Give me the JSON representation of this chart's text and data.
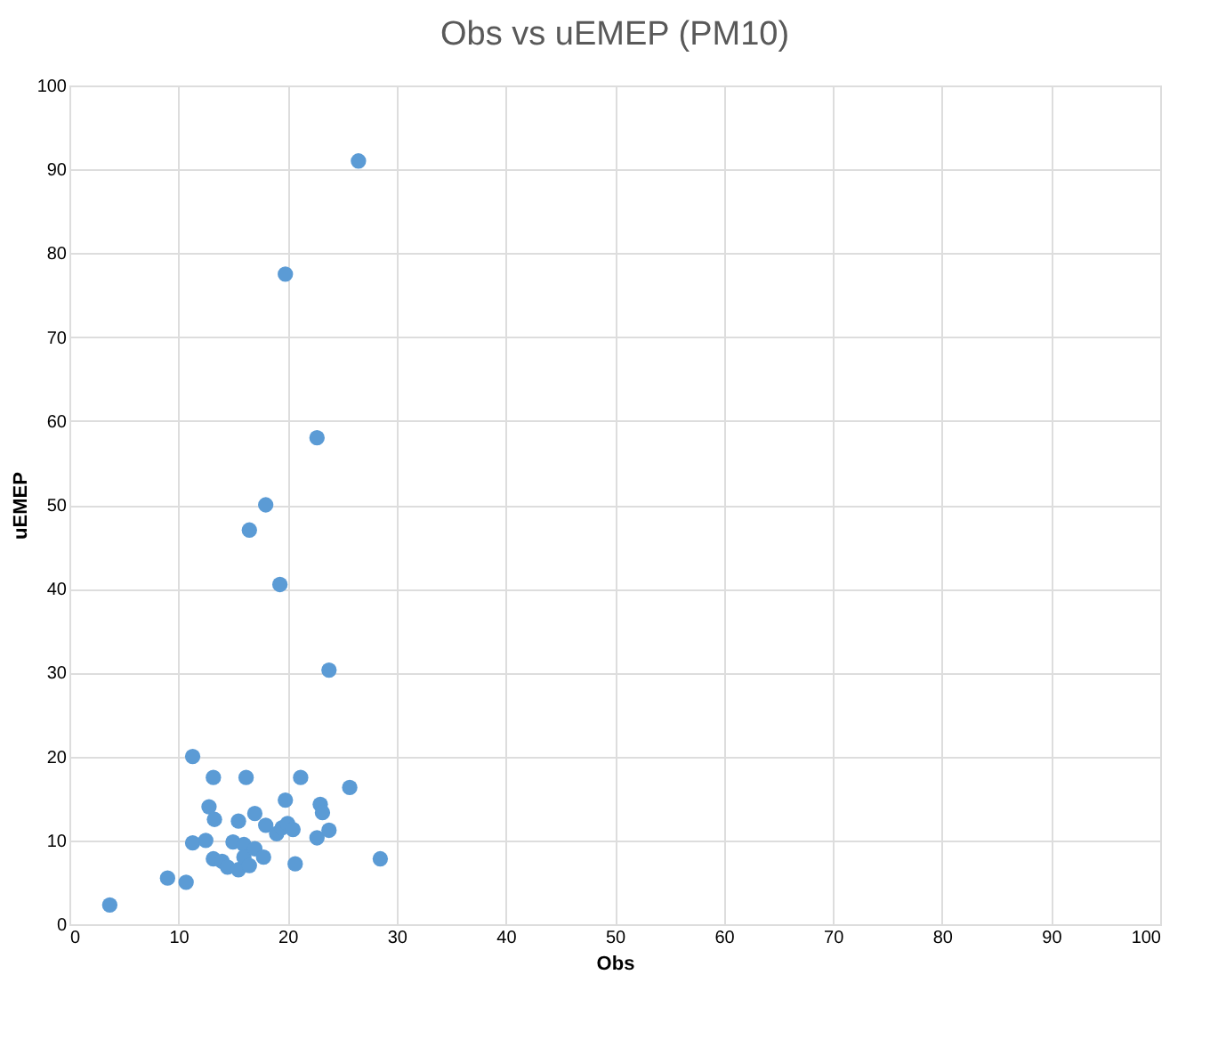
{
  "chart_data": {
    "type": "scatter",
    "title": "Obs vs uEMEP (PM10)",
    "xlabel": "Obs",
    "ylabel": "uEMEP",
    "x": [
      3.7,
      9,
      10.7,
      11.3,
      11.3,
      12.5,
      12.8,
      13.2,
      13.3,
      13.2,
      14,
      14.5,
      15,
      15.2,
      15.5,
      15.5,
      16,
      16,
      16.2,
      16.5,
      16.8,
      17,
      17,
      17.5,
      17.8,
      18,
      18.5,
      19,
      19.5,
      19.8,
      20,
      20.5,
      20.7,
      21.2,
      22.7,
      23,
      23.2,
      23.8,
      25.7,
      28.5,
      16.5,
      18,
      19.3,
      19.8,
      22.7,
      23.8,
      26.5
    ],
    "series": [
      {
        "color": "#5b9bd5",
        "values": [
          2.3,
          5.5,
          5,
          20,
          9.7,
          10,
          14,
          17.5,
          12.5,
          7.8,
          7.5,
          6.8,
          9.8,
          null,
          12.3,
          6.5,
          9.5,
          8,
          17.5,
          7,
          null,
          13.2,
          9,
          null,
          8,
          11.8,
          null,
          10.8,
          11.5,
          14.8,
          12,
          11.3,
          7.2,
          17.5,
          10.3,
          14.3,
          13.3,
          11.2,
          16.3,
          7.8,
          47,
          50,
          40.5,
          77.5,
          58,
          30.3,
          91
        ]
      }
    ],
    "xlim": [
      0,
      100
    ],
    "xticks": [
      0,
      10,
      20,
      30,
      40,
      50,
      60,
      70,
      80,
      90,
      100
    ],
    "ylim": [
      0,
      100
    ],
    "yticks": [
      0,
      10,
      20,
      30,
      40,
      50,
      60,
      70,
      80,
      90,
      100
    ],
    "grid": true,
    "marker": "circle",
    "legend": false
  }
}
